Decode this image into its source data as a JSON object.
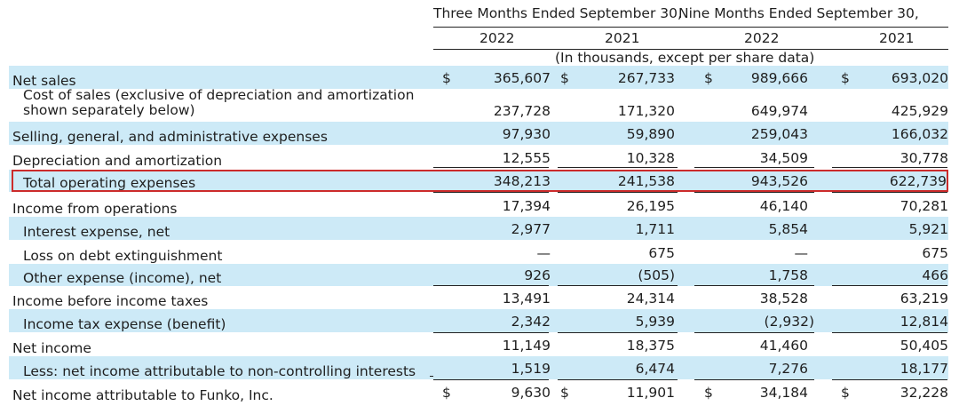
{
  "header": {
    "period_three": "Three Months Ended September 30,",
    "period_nine": "Nine Months Ended September 30,",
    "years": [
      "2022",
      "2021",
      "2022",
      "2021"
    ],
    "units_note": "(In thousands, except per share data)"
  },
  "rows": [
    {
      "label": "Net sales",
      "currency": [
        "$",
        "$",
        "$",
        "$"
      ],
      "values": [
        "365,607",
        "267,733",
        "989,666",
        "693,020"
      ]
    },
    {
      "label": "Cost of sales (exclusive of depreciation and amortization",
      "label2": "shown separately below)",
      "values": [
        "237,728",
        "171,320",
        "649,974",
        "425,929"
      ]
    },
    {
      "label": "Selling, general, and administrative expenses",
      "values": [
        "97,930",
        "59,890",
        "259,043",
        "166,032"
      ]
    },
    {
      "label": "Depreciation and amortization",
      "values": [
        "12,555",
        "10,328",
        "34,509",
        "30,778"
      ]
    },
    {
      "label": "Total operating expenses",
      "values": [
        "348,213",
        "241,538",
        "943,526",
        "622,739"
      ]
    },
    {
      "label": "Income from operations",
      "values": [
        "17,394",
        "26,195",
        "46,140",
        "70,281"
      ]
    },
    {
      "label": "Interest expense, net",
      "values": [
        "2,977",
        "1,711",
        "5,854",
        "5,921"
      ]
    },
    {
      "label": "Loss on debt extinguishment",
      "values": [
        "—",
        "675",
        "—",
        "675"
      ]
    },
    {
      "label": "Other expense (income), net",
      "values": [
        "926",
        "(505)",
        "1,758",
        "466"
      ]
    },
    {
      "label": "Income before income taxes",
      "values": [
        "13,491",
        "24,314",
        "38,528",
        "63,219"
      ]
    },
    {
      "label": "Income tax expense (benefit)",
      "values": [
        "2,342",
        "5,939",
        "(2,932)",
        "12,814"
      ]
    },
    {
      "label": "Net income",
      "values": [
        "11,149",
        "18,375",
        "41,460",
        "50,405"
      ]
    },
    {
      "label": "Less: net income attributable to non-controlling interests",
      "values": [
        "1,519",
        "6,474",
        "7,276",
        "18,177"
      ]
    },
    {
      "label": "Net income attributable to Funko, Inc.",
      "currency": [
        "$",
        "$",
        "$",
        "$"
      ],
      "values": [
        "9,630",
        "11,901",
        "34,184",
        "32,228"
      ]
    }
  ],
  "colors": {
    "shade": "#cdeaf7",
    "highlight_border": "#cc2b2b",
    "rule": "#222222"
  }
}
